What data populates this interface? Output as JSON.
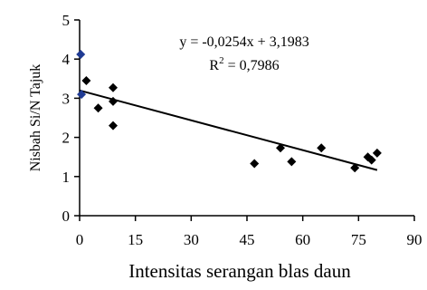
{
  "chart_data": {
    "type": "scatter",
    "title": "",
    "xlabel": "Intensitas serangan blas daun",
    "ylabel": "Nisbah Si/N Tajuk",
    "xlim": [
      0,
      90
    ],
    "ylim": [
      0,
      5
    ],
    "xticks": [
      0,
      15,
      30,
      45,
      60,
      75,
      90
    ],
    "yticks": [
      0,
      1,
      2,
      3,
      4,
      5
    ],
    "grid": false,
    "legend": "none",
    "marker": "diamond",
    "marker_color": "#000000",
    "series": [
      {
        "points": [
          {
            "x": 0.3,
            "y": 4.12,
            "color": "#1f3a93"
          },
          {
            "x": 0.5,
            "y": 3.1,
            "color": "#1f3a93"
          },
          {
            "x": 1.8,
            "y": 3.45
          },
          {
            "x": 5,
            "y": 2.75
          },
          {
            "x": 9,
            "y": 3.27
          },
          {
            "x": 9,
            "y": 2.92
          },
          {
            "x": 9,
            "y": 2.3
          },
          {
            "x": 47,
            "y": 1.33
          },
          {
            "x": 54,
            "y": 1.73
          },
          {
            "x": 57,
            "y": 1.38
          },
          {
            "x": 65,
            "y": 1.73
          },
          {
            "x": 74,
            "y": 1.22
          },
          {
            "x": 77.5,
            "y": 1.5
          },
          {
            "x": 78.5,
            "y": 1.42
          },
          {
            "x": 80,
            "y": 1.6
          }
        ]
      }
    ],
    "trendline": {
      "type": "linear",
      "slope": -0.0254,
      "intercept": 3.1983,
      "x_range": [
        0,
        80
      ],
      "equation": "y = -0,0254x + 3,1983",
      "r2_prefix": "R",
      "r2_sup": "2",
      "r2_value": " = 0,7986"
    }
  }
}
